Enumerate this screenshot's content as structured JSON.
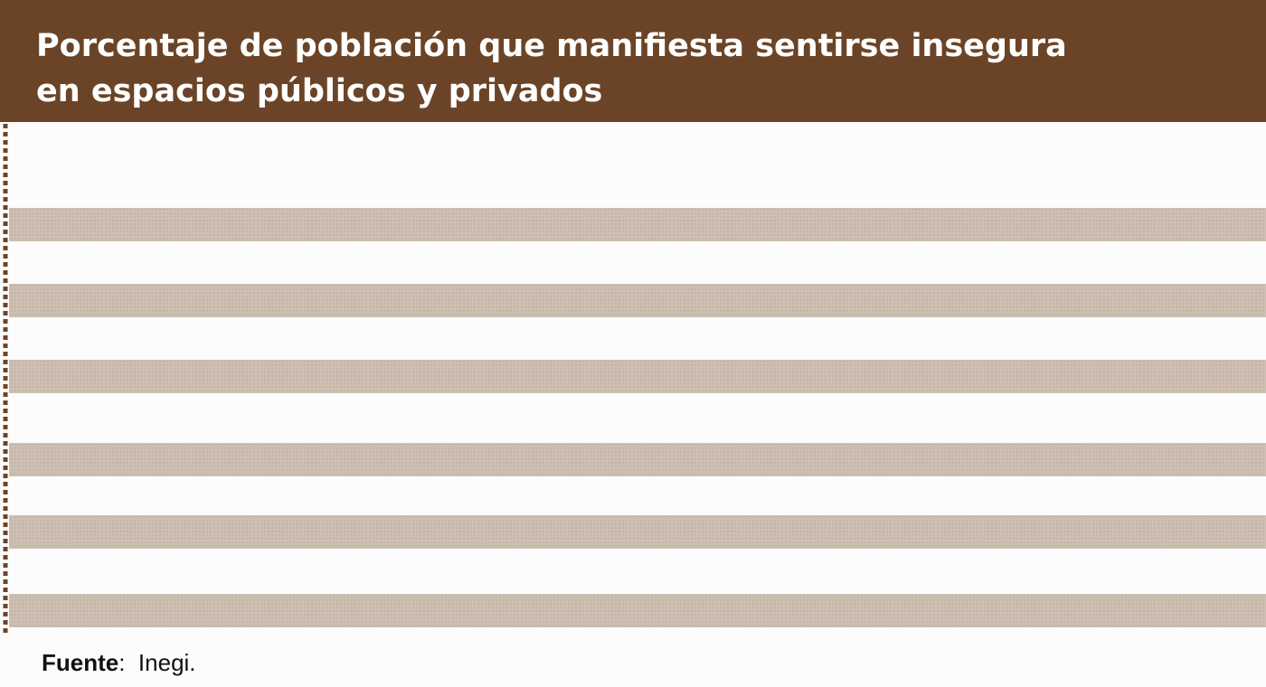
{
  "chart_data": {
    "type": "bar",
    "title": "Porcentaje de población que manifiesta sentirse insegura\nen espacios públicos y privados",
    "categories": [],
    "values": [],
    "xlabel": "",
    "ylabel": "",
    "grid": false,
    "legend": "none"
  },
  "source": {
    "label": "Fuente",
    "separator": ":",
    "value": "Inegi."
  },
  "colors": {
    "header": "#6b4427",
    "band": "#c9bcaf",
    "axis": "#6b4427",
    "fold": "#a7a29d"
  }
}
